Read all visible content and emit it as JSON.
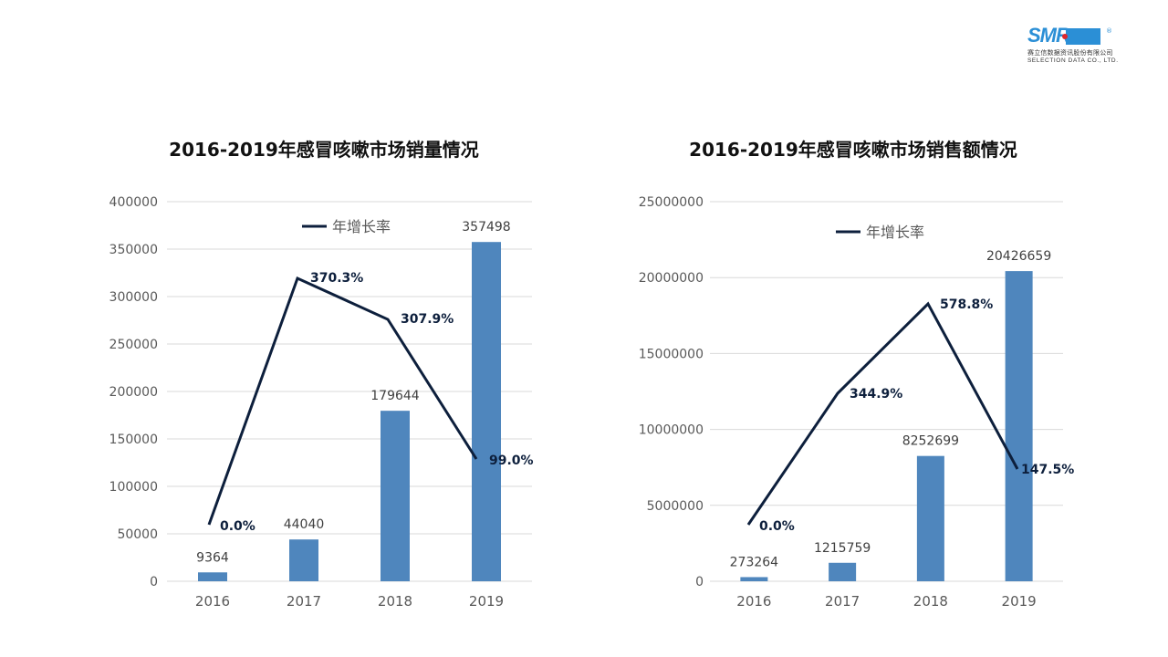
{
  "logo": {
    "brand": "SMR",
    "registered": "®",
    "company_cn": "赛立信数据资讯股份有限公司",
    "company_en": "SELECTION DATA CO., LTD.",
    "colors": {
      "blue": "#2b8fd6",
      "red": "#e0262b"
    }
  },
  "colors": {
    "bar": "#4f86bd",
    "line": "#0d1f3c",
    "grid": "#d9d9d9",
    "axis_text": "#595959"
  },
  "chart_data": [
    {
      "type": "bar+line",
      "title": "2016-2019年感冒咳嗽市场销量情况",
      "categories": [
        "2016",
        "2017",
        "2018",
        "2019"
      ],
      "series": [
        {
          "name": "销量",
          "type": "bar",
          "values": [
            9364,
            44040,
            179644,
            357498
          ],
          "labels": [
            "9364",
            "44040",
            "179644",
            "357498"
          ]
        },
        {
          "name": "年增长率",
          "type": "line",
          "values": [
            0.0,
            370.3,
            307.9,
            99.0
          ],
          "labels": [
            "0.0%",
            "370.3%",
            "307.9%",
            "99.0%"
          ]
        }
      ],
      "yticks": [
        "0",
        "50000",
        "100000",
        "150000",
        "200000",
        "250000",
        "300000",
        "350000",
        "400000"
      ],
      "ylim": [
        0,
        400000
      ],
      "legend": {
        "label": "年增长率",
        "position": "top-inside"
      },
      "grid": true,
      "xlabel": "",
      "ylabel": ""
    },
    {
      "type": "bar+line",
      "title": "2016-2019年感冒咳嗽市场销售额情况",
      "categories": [
        "2016",
        "2017",
        "2018",
        "2019"
      ],
      "series": [
        {
          "name": "销售额",
          "type": "bar",
          "values": [
            273264,
            1215759,
            8252699,
            20426659
          ],
          "labels": [
            "273264",
            "1215759",
            "8252699",
            "20426659"
          ]
        },
        {
          "name": "年增长率",
          "type": "line",
          "values": [
            0.0,
            344.9,
            578.8,
            147.5
          ],
          "labels": [
            "0.0%",
            "344.9%",
            "578.8%",
            "147.5%"
          ]
        }
      ],
      "yticks": [
        "0",
        "5000000",
        "10000000",
        "15000000",
        "20000000",
        "25000000"
      ],
      "ylim": [
        0,
        25000000
      ],
      "legend": {
        "label": "年增长率",
        "position": "top-inside"
      },
      "grid": true,
      "xlabel": "",
      "ylabel": ""
    }
  ]
}
